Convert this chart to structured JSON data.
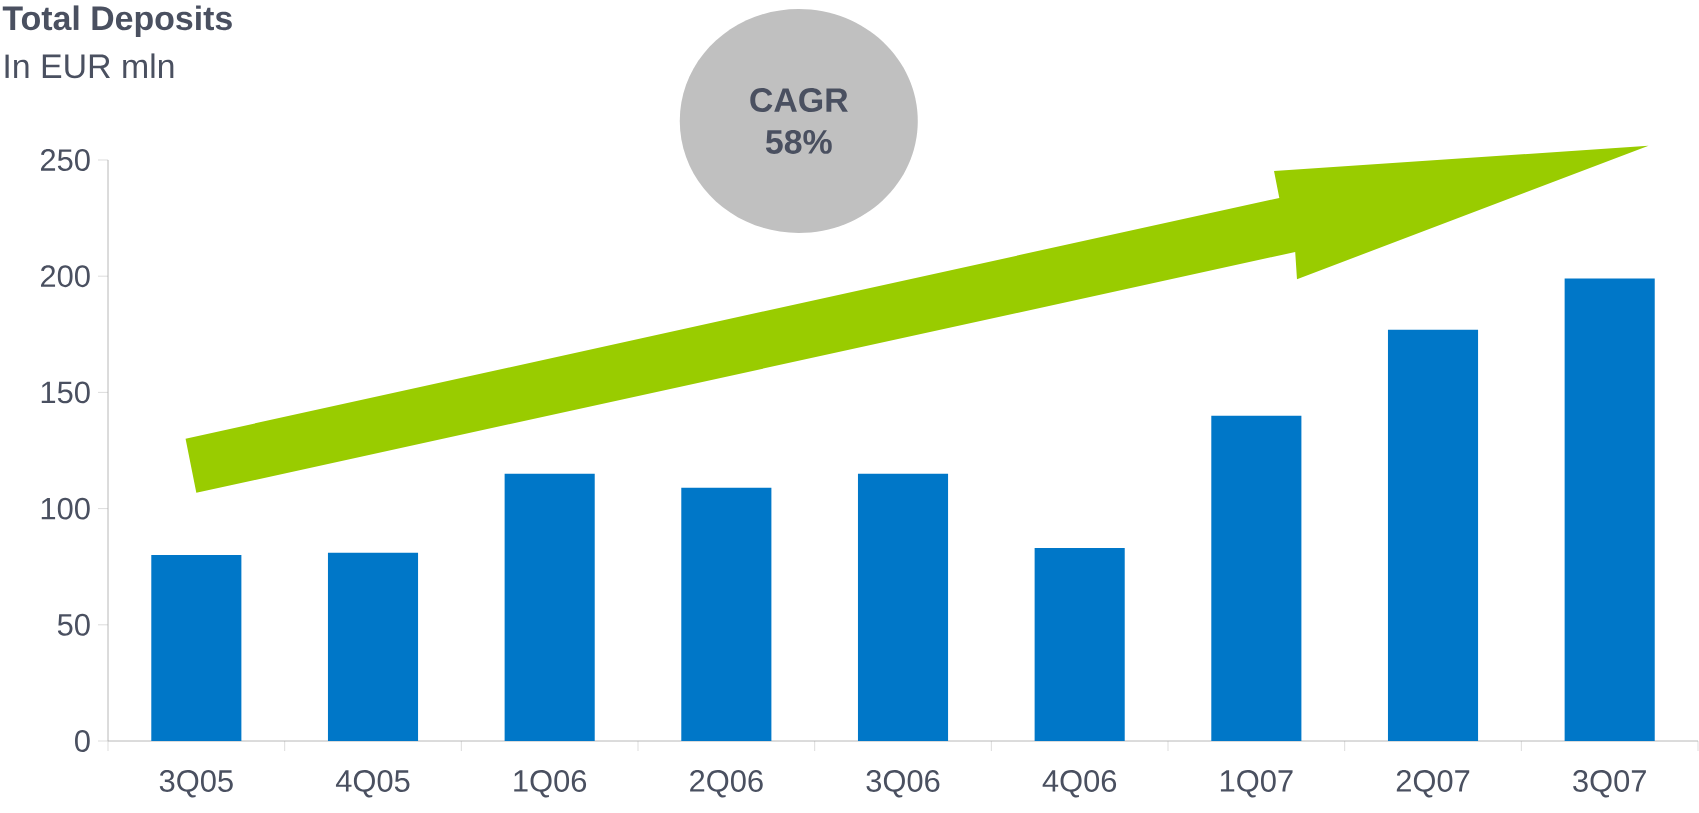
{
  "chart_data": {
    "type": "bar",
    "title": "Total Deposits",
    "subtitle": "In EUR mln",
    "categories": [
      "3Q05",
      "4Q05",
      "1Q06",
      "2Q06",
      "3Q06",
      "4Q06",
      "1Q07",
      "2Q07",
      "3Q07"
    ],
    "values": [
      80,
      81,
      115,
      109,
      115,
      83,
      140,
      177,
      199
    ],
    "color": "#0077c8",
    "ylim": [
      0,
      250
    ],
    "yticks": [
      0,
      50,
      100,
      150,
      200,
      250
    ],
    "annotations": [
      "CAGR 58%"
    ]
  }
}
